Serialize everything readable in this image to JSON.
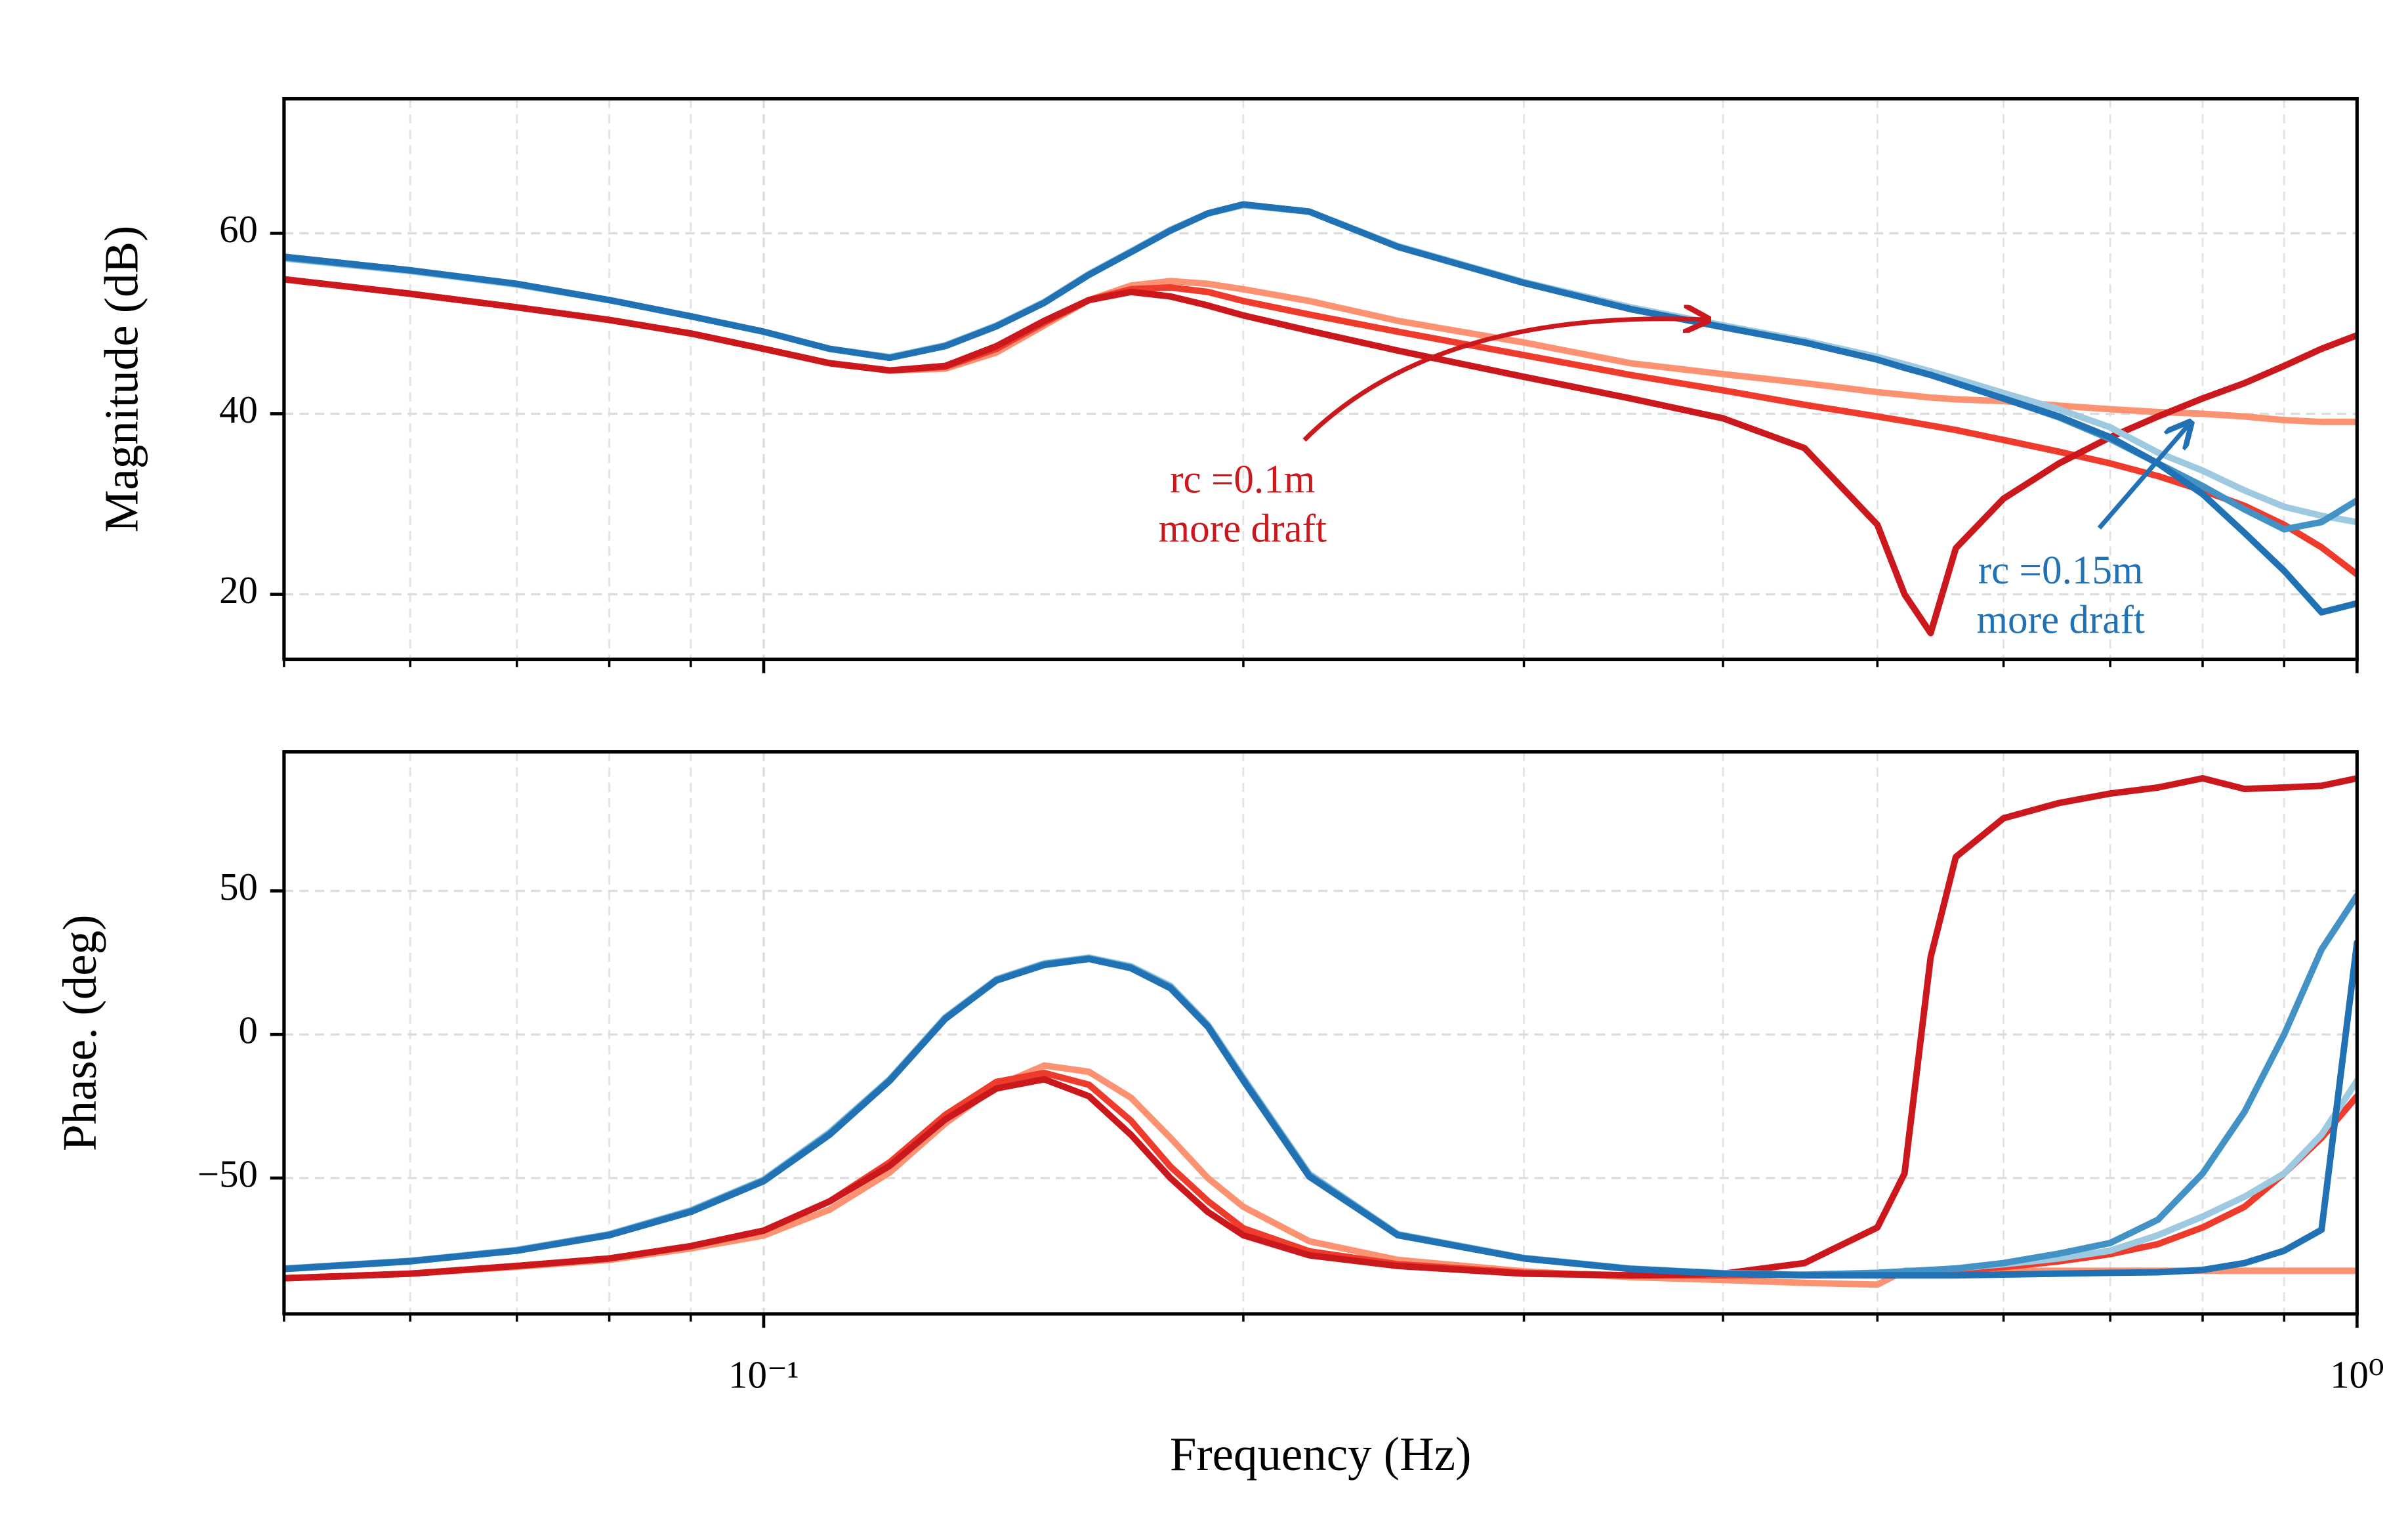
{
  "chart_data": [
    {
      "type": "line",
      "xscale": "log",
      "grid": true,
      "ylabel": "Magnitude (dB)",
      "xlim": [
        0.05,
        1
      ],
      "xticks": [
        0.1,
        1
      ],
      "xminorticks": [
        0.06,
        0.07,
        0.08,
        0.09,
        0.2,
        0.3,
        0.4,
        0.5,
        0.6,
        0.7,
        0.8,
        0.9
      ],
      "ylim": [
        12.8,
        74.9
      ],
      "yticks": [
        20,
        40,
        60
      ],
      "x": [
        0.05,
        0.06,
        0.07,
        0.08,
        0.09,
        0.1,
        0.11,
        0.12,
        0.13,
        0.14,
        0.15,
        0.16,
        0.17,
        0.18,
        0.19,
        0.2,
        0.22,
        0.25,
        0.3,
        0.35,
        0.4,
        0.45,
        0.5,
        0.52,
        0.54,
        0.56,
        0.6,
        0.65,
        0.7,
        0.75,
        0.8,
        0.85,
        0.9,
        0.95,
        1.0
      ],
      "series": [
        {
          "color": "#fc9272",
          "values": [
            54.9,
            53.3,
            51.8,
            50.4,
            48.9,
            47.2,
            45.6,
            44.8,
            45.0,
            46.8,
            49.8,
            52.6,
            54.2,
            54.7,
            54.4,
            53.8,
            52.5,
            50.3,
            47.9,
            45.6,
            44.4,
            43.4,
            42.4,
            42.1,
            41.8,
            41.6,
            41.4,
            40.9,
            40.5,
            40.2,
            40.0,
            39.7,
            39.3,
            39.1,
            39.1
          ]
        },
        {
          "color": "#ef3b2c",
          "values": [
            54.9,
            53.3,
            51.8,
            50.4,
            48.9,
            47.2,
            45.6,
            44.8,
            45.2,
            47.2,
            50.1,
            52.6,
            53.8,
            54.0,
            53.5,
            52.5,
            51.0,
            49.1,
            46.5,
            44.3,
            42.6,
            41.0,
            39.7,
            39.2,
            38.7,
            38.2,
            37.1,
            35.8,
            34.5,
            33.1,
            31.5,
            29.8,
            27.7,
            25.2,
            22.2
          ]
        },
        {
          "color": "#cb181d",
          "values": [
            54.9,
            53.3,
            51.8,
            50.4,
            48.9,
            47.2,
            45.6,
            44.8,
            45.3,
            47.5,
            50.3,
            52.6,
            53.5,
            53.0,
            52.0,
            50.9,
            49.2,
            47.0,
            44.1,
            41.7,
            39.5,
            36.2,
            27.7,
            20.0,
            15.7,
            25.1,
            30.6,
            34.5,
            37.4,
            39.7,
            41.7,
            43.4,
            45.3,
            47.2,
            48.7
          ]
        },
        {
          "color": "#9ecae1",
          "values": [
            57.2,
            55.8,
            54.3,
            52.6,
            50.8,
            49.1,
            47.2,
            46.3,
            47.6,
            49.8,
            52.4,
            55.5,
            58.0,
            60.4,
            62.2,
            63.1,
            62.4,
            58.6,
            54.6,
            51.8,
            49.8,
            48.1,
            46.3,
            45.5,
            44.7,
            43.9,
            42.3,
            40.5,
            38.5,
            35.7,
            33.7,
            31.5,
            29.7,
            28.7,
            28.0
          ]
        },
        {
          "color": "#4292c6",
          "values": [
            57.3,
            55.9,
            54.4,
            52.6,
            50.8,
            49.1,
            47.2,
            46.2,
            47.5,
            49.7,
            52.3,
            55.4,
            57.9,
            60.3,
            62.2,
            63.2,
            62.4,
            58.5,
            54.5,
            51.6,
            49.6,
            47.9,
            46.0,
            45.1,
            44.3,
            43.4,
            41.7,
            39.6,
            37.2,
            34.5,
            32.0,
            29.4,
            27.2,
            28.0,
            30.4
          ]
        },
        {
          "color": "#2171b5",
          "values": [
            57.4,
            55.9,
            54.4,
            52.6,
            50.8,
            49.1,
            47.2,
            46.2,
            47.5,
            49.7,
            52.3,
            55.4,
            57.9,
            60.3,
            62.2,
            63.2,
            62.4,
            58.5,
            54.5,
            51.6,
            49.6,
            47.9,
            46.0,
            45.1,
            44.3,
            43.4,
            41.7,
            39.7,
            37.4,
            34.5,
            31.1,
            26.8,
            22.6,
            18.0,
            19.0
          ]
        }
      ],
      "annotations": [
        {
          "lines": [
            "rc =0.1m",
            "more draft"
          ],
          "color": "#cb181d"
        },
        {
          "lines": [
            "rc =0.15m",
            "more draft"
          ],
          "color": "#2171b5"
        }
      ]
    },
    {
      "type": "line",
      "xscale": "log",
      "grid": true,
      "ylabel": "Phase. (deg)",
      "xlabel": "Frequency (Hz)",
      "xlim": [
        0.05,
        1
      ],
      "xticks": [
        {
          "value": 0.1,
          "label": "10⁻¹"
        },
        {
          "value": 1,
          "label": "10⁰"
        }
      ],
      "xminorticks": [
        0.06,
        0.07,
        0.08,
        0.09,
        0.2,
        0.3,
        0.4,
        0.5,
        0.6,
        0.7,
        0.8,
        0.9
      ],
      "ylim": [
        -97.3,
        98.4
      ],
      "yticks": [
        {
          "value": -50,
          "label": "−50"
        },
        0,
        50
      ],
      "x": [
        0.05,
        0.06,
        0.07,
        0.08,
        0.09,
        0.1,
        0.11,
        0.12,
        0.13,
        0.14,
        0.15,
        0.16,
        0.17,
        0.18,
        0.19,
        0.2,
        0.22,
        0.25,
        0.3,
        0.35,
        0.4,
        0.45,
        0.5,
        0.52,
        0.54,
        0.56,
        0.6,
        0.65,
        0.7,
        0.75,
        0.8,
        0.85,
        0.9,
        0.95,
        1.0
      ],
      "series": [
        {
          "color": "#fc9272",
          "values": [
            -84.9,
            -83.3,
            -80.9,
            -78.5,
            -74.5,
            -70.0,
            -61.0,
            -48.0,
            -31.0,
            -18.0,
            -10.8,
            -13.0,
            -22.0,
            -36.0,
            -50.0,
            -60.0,
            -72.0,
            -78.5,
            -82.5,
            -84.5,
            -85.5,
            -86.5,
            -87.1,
            -82.3,
            -82.3,
            -82.3,
            -82.3,
            -82.3,
            -82.3,
            -82.3,
            -82.3,
            -82.3,
            -82.3,
            -82.3,
            -82.3
          ]
        },
        {
          "color": "#ef3b2c",
          "values": [
            -84.9,
            -83.3,
            -80.6,
            -78.0,
            -73.7,
            -68.3,
            -58.1,
            -44.5,
            -28.0,
            -16.5,
            -13.4,
            -17.5,
            -30.0,
            -46.0,
            -58.0,
            -67.5,
            -75.5,
            -80.0,
            -83.0,
            -83.9,
            -83.9,
            -83.6,
            -83.3,
            -83.0,
            -82.6,
            -82.2,
            -81.0,
            -79.0,
            -76.5,
            -73.0,
            -67.2,
            -60.0,
            -48.4,
            -36.0,
            -21.5
          ]
        },
        {
          "color": "#cb181d",
          "values": [
            -84.9,
            -83.3,
            -80.6,
            -78.0,
            -73.7,
            -68.3,
            -58.1,
            -45.7,
            -29.6,
            -18.8,
            -15.6,
            -21.5,
            -34.9,
            -50.0,
            -61.8,
            -69.9,
            -76.9,
            -80.6,
            -83.3,
            -83.9,
            -83.3,
            -79.6,
            -67.2,
            -48.4,
            26.9,
            61.8,
            75.3,
            80.6,
            83.9,
            86.0,
            89.2,
            85.5,
            86.0,
            86.6,
            89.2
          ]
        },
        {
          "color": "#9ecae1",
          "values": [
            -81.5,
            -78.8,
            -75.0,
            -69.5,
            -61.2,
            -50.5,
            -34.0,
            -15.5,
            6.0,
            19.3,
            24.8,
            26.8,
            23.8,
            17.0,
            3.5,
            -15.0,
            -48.5,
            -69.5,
            -77.8,
            -81.5,
            -83.1,
            -83.6,
            -83.0,
            -82.5,
            -82.0,
            -81.5,
            -80.0,
            -78.0,
            -75.3,
            -69.9,
            -63.4,
            -56.5,
            -48.4,
            -34.9,
            -16.1
          ]
        },
        {
          "color": "#4292c6",
          "values": [
            -81.6,
            -78.9,
            -75.2,
            -69.7,
            -61.5,
            -50.8,
            -34.5,
            -15.8,
            5.7,
            19.0,
            24.5,
            26.5,
            23.4,
            16.5,
            3.0,
            -15.6,
            -49.0,
            -69.7,
            -77.9,
            -81.6,
            -83.2,
            -83.7,
            -83.0,
            -82.5,
            -82.0,
            -81.5,
            -79.6,
            -76.3,
            -72.6,
            -64.5,
            -48.4,
            -26.9,
            0.0,
            29.6,
            48.4
          ]
        },
        {
          "color": "#2171b5",
          "values": [
            -81.7,
            -79.0,
            -75.3,
            -69.9,
            -61.8,
            -51.1,
            -34.9,
            -16.1,
            5.4,
            18.8,
            24.2,
            26.3,
            23.1,
            16.1,
            2.7,
            -16.1,
            -49.5,
            -69.9,
            -78.0,
            -81.7,
            -83.3,
            -83.9,
            -83.9,
            -83.9,
            -83.9,
            -83.9,
            -83.6,
            -83.3,
            -83.0,
            -82.8,
            -82.0,
            -79.6,
            -75.3,
            -68.0,
            32.0
          ]
        }
      ]
    }
  ]
}
